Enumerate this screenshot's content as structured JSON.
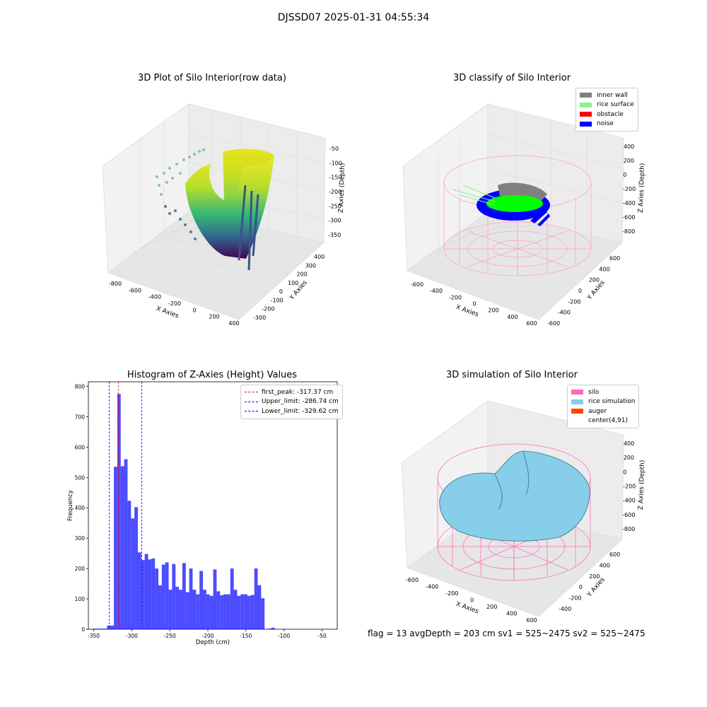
{
  "figure": {
    "suptitle": "DJSSD07 2025-01-31 04:55:34",
    "status_line": "flag = 13   avgDepth = 203 cm  sv1 = 525~2475  sv2 = 525~2475"
  },
  "panels": {
    "raw": {
      "title": "3D Plot of Silo Interior(row data)",
      "xlabel": "X Axies",
      "ylabel": "Y Axies",
      "zlabel": "Z Axies (Depth)",
      "xticks": [
        "-800",
        "-600",
        "-400",
        "-200",
        "0",
        "200",
        "400"
      ],
      "yticks": [
        "-300",
        "-200",
        "-100",
        "0",
        "100",
        "200",
        "300",
        "400"
      ],
      "zticks": [
        "-50",
        "-100",
        "-150",
        "-200",
        "-250",
        "-300",
        "-350"
      ]
    },
    "classify": {
      "title": "3D classify of Silo Interior",
      "xlabel": "X Axies",
      "ylabel": "Y Axies",
      "zlabel": "Z Axies (Depth)",
      "xticks": [
        "-600",
        "-400",
        "-200",
        "0",
        "200",
        "400",
        "600"
      ],
      "yticks": [
        "-600",
        "-400",
        "-200",
        "0",
        "200",
        "400",
        "600"
      ],
      "zticks": [
        "400",
        "200",
        "0",
        "-200",
        "-400",
        "-600",
        "-800"
      ],
      "legend": [
        {
          "label": "inner wall",
          "color": "#808080"
        },
        {
          "label": "rice surface",
          "color": "#90ee90"
        },
        {
          "label": "obstacle",
          "color": "#ff0000"
        },
        {
          "label": "noise",
          "color": "#0000ff"
        }
      ]
    },
    "simulation": {
      "title": "3D simulation of Silo Interior",
      "xlabel": "X Axies",
      "ylabel": "Y Axies",
      "zlabel": "Z Axies (Depth)",
      "xticks": [
        "-600",
        "-400",
        "-200",
        "0",
        "200",
        "400",
        "600"
      ],
      "yticks": [
        "-400",
        "-200",
        "0",
        "200",
        "400",
        "600"
      ],
      "zticks": [
        "400",
        "200",
        "0",
        "-200",
        "-400",
        "-600",
        "-800"
      ],
      "legend": [
        {
          "label": "silo",
          "color": "#ff69b4"
        },
        {
          "label": "rice simulation",
          "color": "#87ceeb"
        },
        {
          "label": "auger",
          "color": "#ff4500"
        },
        {
          "label": "center(4,91)",
          "color": "#ffffff"
        }
      ]
    }
  },
  "chart_data": {
    "type": "bar",
    "title": "Histogram of Z-Axies (Height) Values",
    "xlabel": "Depth (cm)",
    "ylabel": "Frequency",
    "xlim": [
      -357,
      -30
    ],
    "ylim": [
      0,
      815
    ],
    "xticks": [
      -350,
      -300,
      -250,
      -200,
      -150,
      -100,
      -50
    ],
    "yticks": [
      0,
      100,
      200,
      300,
      400,
      500,
      600,
      700,
      800
    ],
    "bar_color": "#0000ff",
    "bin_width": 4.5,
    "bins": [
      [
        -350.5,
        2
      ],
      [
        -346,
        2
      ],
      [
        -341.5,
        2
      ],
      [
        -337,
        2
      ],
      [
        -332.5,
        12
      ],
      [
        -328,
        12
      ],
      [
        -323.5,
        535
      ],
      [
        -319,
        775
      ],
      [
        -314.5,
        537
      ],
      [
        -310,
        560
      ],
      [
        -305.5,
        423
      ],
      [
        -301,
        365
      ],
      [
        -296.5,
        402
      ],
      [
        -292,
        253
      ],
      [
        -287.5,
        228
      ],
      [
        -283,
        248
      ],
      [
        -278.5,
        230
      ],
      [
        -274,
        233
      ],
      [
        -269.5,
        200
      ],
      [
        -265,
        145
      ],
      [
        -260.5,
        213
      ],
      [
        -256,
        220
      ],
      [
        -251.5,
        130
      ],
      [
        -247,
        215
      ],
      [
        -242.5,
        140
      ],
      [
        -238,
        130
      ],
      [
        -233.5,
        218
      ],
      [
        -229,
        122
      ],
      [
        -224.5,
        200
      ],
      [
        -220,
        130
      ],
      [
        -215.5,
        115
      ],
      [
        -211,
        192
      ],
      [
        -206.5,
        130
      ],
      [
        -202,
        115
      ],
      [
        -197.5,
        110
      ],
      [
        -193,
        197
      ],
      [
        -188.5,
        125
      ],
      [
        -184,
        112
      ],
      [
        -179.5,
        115
      ],
      [
        -175,
        115
      ],
      [
        -170.5,
        200
      ],
      [
        -166,
        130
      ],
      [
        -161.5,
        110
      ],
      [
        -157,
        115
      ],
      [
        -152.5,
        115
      ],
      [
        -148,
        110
      ],
      [
        -143.5,
        113
      ],
      [
        -139,
        200
      ],
      [
        -134.5,
        145
      ],
      [
        -130,
        102
      ],
      [
        -121,
        2
      ],
      [
        -116.5,
        5
      ]
    ],
    "lines": [
      {
        "label": "first_peak: -317.37 cm",
        "x": -317.37,
        "color": "#ff0000"
      },
      {
        "label": "Upper_limit: -286.74 cm",
        "x": -286.74,
        "color": "#0000ff"
      },
      {
        "label": "Lower_limit: -329.62 cm",
        "x": -329.62,
        "color": "#0000ff"
      }
    ]
  }
}
